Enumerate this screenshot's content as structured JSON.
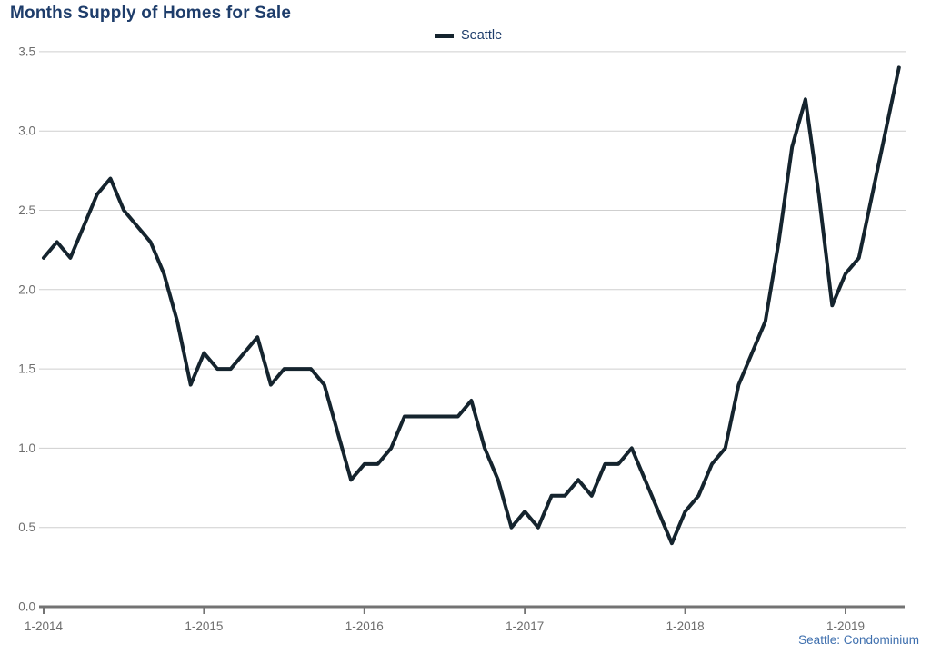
{
  "header": {
    "title": "Months Supply of Homes for Sale"
  },
  "legend": {
    "label": "Seattle"
  },
  "source_note": "Seattle: Condominium",
  "colors": {
    "line": "#15242e",
    "title_text": "#1e3d6b",
    "source_text": "#3e6fae",
    "axis_line": "#737373",
    "tick_text": "#6e6e6e",
    "gridline": "#cfcfcf",
    "background": "#ffffff"
  },
  "chart_data": {
    "type": "line",
    "title": "Months Supply of Homes for Sale",
    "xlabel": "",
    "ylabel": "",
    "ylim": [
      0.0,
      3.5
    ],
    "ytick_step": 0.5,
    "ytick_labels": [
      "0.0",
      "0.5",
      "1.0",
      "1.5",
      "2.0",
      "2.5",
      "3.0",
      "3.5"
    ],
    "xtick_labels": [
      "1-2014",
      "1-2015",
      "1-2016",
      "1-2017",
      "1-2018",
      "1-2019"
    ],
    "grid": "horizontal only",
    "legend_position": "top-center",
    "source_note": "Seattle: Condominium",
    "series": [
      {
        "name": "Seattle",
        "color": "#15242e",
        "x": [
          "1-2014",
          "2-2014",
          "3-2014",
          "4-2014",
          "5-2014",
          "6-2014",
          "7-2014",
          "8-2014",
          "9-2014",
          "10-2014",
          "11-2014",
          "12-2014",
          "1-2015",
          "2-2015",
          "3-2015",
          "4-2015",
          "5-2015",
          "6-2015",
          "7-2015",
          "8-2015",
          "9-2015",
          "10-2015",
          "11-2015",
          "12-2015",
          "1-2016",
          "2-2016",
          "3-2016",
          "4-2016",
          "5-2016",
          "6-2016",
          "7-2016",
          "8-2016",
          "9-2016",
          "10-2016",
          "11-2016",
          "12-2016",
          "1-2017",
          "2-2017",
          "3-2017",
          "4-2017",
          "5-2017",
          "6-2017",
          "7-2017",
          "8-2017",
          "9-2017",
          "10-2017",
          "11-2017",
          "12-2017",
          "1-2018",
          "2-2018",
          "3-2018",
          "4-2018",
          "5-2018",
          "6-2018",
          "7-2018",
          "8-2018",
          "9-2018",
          "10-2018",
          "11-2018",
          "12-2018",
          "1-2019",
          "2-2019",
          "3-2019",
          "4-2019",
          "5-2019"
        ],
        "values": [
          2.2,
          2.3,
          2.2,
          2.4,
          2.6,
          2.7,
          2.5,
          2.4,
          2.3,
          2.1,
          1.8,
          1.4,
          1.6,
          1.5,
          1.5,
          1.6,
          1.7,
          1.4,
          1.5,
          1.5,
          1.5,
          1.4,
          1.1,
          0.8,
          0.9,
          0.9,
          1.0,
          1.2,
          1.2,
          1.2,
          1.2,
          1.2,
          1.3,
          1.0,
          0.8,
          0.5,
          0.6,
          0.5,
          0.7,
          0.7,
          0.8,
          0.7,
          0.9,
          0.9,
          1.0,
          0.8,
          0.6,
          0.4,
          0.6,
          0.7,
          0.9,
          1.0,
          1.4,
          1.6,
          1.8,
          2.3,
          2.9,
          3.2,
          2.6,
          1.9,
          2.1,
          2.2,
          2.6,
          3.0,
          3.4
        ]
      }
    ]
  }
}
